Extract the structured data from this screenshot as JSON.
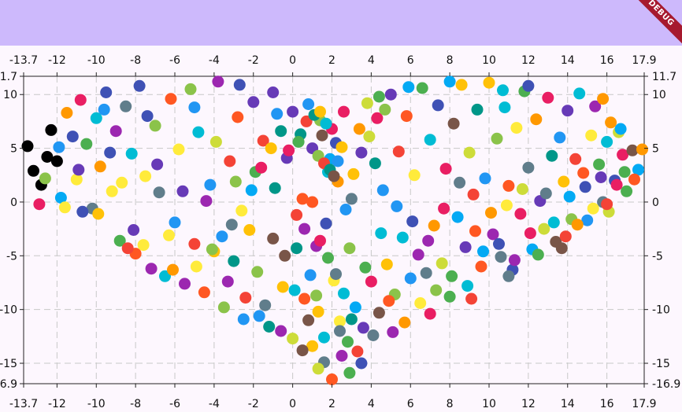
{
  "debug_banner": "DEBUG",
  "colors": {
    "appbar": "#cdb9fc",
    "background": "#fdf7fe",
    "grid": "#c8c8c8",
    "dot_palette": [
      "#f44336",
      "#e91e63",
      "#9c27b0",
      "#673ab7",
      "#3f51b5",
      "#2196f3",
      "#03a9f4",
      "#00bcd4",
      "#009688",
      "#4caf50",
      "#8bc34a",
      "#cddc39",
      "#ffeb3b",
      "#ffc107",
      "#ff9800",
      "#ff5722",
      "#795548",
      "#607d8b"
    ]
  },
  "chart_data": {
    "type": "scatter",
    "title": "",
    "xlabel": "",
    "ylabel": "",
    "xlim": [
      -13.7,
      17.9
    ],
    "ylim": [
      -16.9,
      11.7
    ],
    "x_ticks": [
      "-13.7",
      "-12",
      "-10",
      "-8",
      "-6",
      "-4",
      "-2",
      "0",
      "2",
      "4",
      "6",
      "8",
      "10",
      "12",
      "14",
      "16",
      "17.9"
    ],
    "y_ticks": [
      "11.7",
      "10",
      "5",
      "0",
      "-5",
      "-10",
      "-15",
      "-16.9"
    ],
    "grid": true,
    "legend": "none",
    "shape": "heart-shaped scatter of ~1000 multicolored points",
    "series": [
      {
        "points": [
          [
            -13.5,
            5.2
          ],
          [
            -13.2,
            2.9
          ],
          [
            -12.8,
            1.6
          ],
          [
            -12.5,
            4.2
          ],
          [
            -12.3,
            6.7
          ],
          [
            -12.0,
            3.8
          ],
          [
            -11.8,
            0.4
          ],
          [
            -11.5,
            8.3
          ],
          [
            -11.2,
            6.1
          ],
          [
            -11.0,
            2.1
          ],
          [
            -10.8,
            9.5
          ],
          [
            -10.5,
            5.4
          ],
          [
            -10.2,
            -0.6
          ],
          [
            -10.0,
            7.8
          ],
          [
            -9.8,
            3.3
          ],
          [
            -9.5,
            10.2
          ],
          [
            -9.2,
            1.0
          ],
          [
            -9.0,
            6.6
          ],
          [
            -8.8,
            -3.6
          ],
          [
            -8.5,
            8.9
          ],
          [
            -8.2,
            4.5
          ],
          [
            -8.0,
            -4.8
          ],
          [
            -7.8,
            10.8
          ],
          [
            -7.5,
            2.4
          ],
          [
            -7.2,
            -6.2
          ],
          [
            -7.0,
            7.1
          ],
          [
            -6.8,
            0.9
          ],
          [
            -6.5,
            -6.9
          ],
          [
            -6.2,
            9.6
          ],
          [
            -6.0,
            -1.9
          ],
          [
            -5.8,
            4.9
          ],
          [
            -5.5,
            -7.6
          ],
          [
            -5.2,
            10.5
          ],
          [
            -5.0,
            -3.9
          ],
          [
            -4.8,
            6.5
          ],
          [
            -4.5,
            -8.4
          ],
          [
            -4.2,
            1.6
          ],
          [
            -4.0,
            -4.6
          ],
          [
            -3.8,
            11.2
          ],
          [
            -3.5,
            -9.8
          ],
          [
            -3.2,
            3.8
          ],
          [
            -3.0,
            -5.5
          ],
          [
            -2.8,
            7.9
          ],
          [
            -2.5,
            -10.9
          ],
          [
            -2.2,
            -2.6
          ],
          [
            -2.0,
            9.3
          ],
          [
            -1.8,
            -6.5
          ],
          [
            -1.5,
            5.7
          ],
          [
            -1.2,
            -11.6
          ],
          [
            -1.0,
            -3.4
          ],
          [
            -0.8,
            8.2
          ],
          [
            -0.5,
            -7.9
          ],
          [
            -0.3,
            4.1
          ],
          [
            0.0,
            -12.7
          ],
          [
            0.2,
            -1.2
          ],
          [
            0.4,
            6.3
          ],
          [
            0.6,
            -9.0
          ],
          [
            0.8,
            9.1
          ],
          [
            1.0,
            -13.4
          ],
          [
            1.2,
            -4.1
          ],
          [
            1.4,
            7.6
          ],
          [
            1.6,
            -14.9
          ],
          [
            1.8,
            2.8
          ],
          [
            2.0,
            -16.5
          ],
          [
            2.2,
            5.5
          ],
          [
            2.4,
            -11.1
          ],
          [
            2.6,
            8.4
          ],
          [
            2.8,
            -13.0
          ],
          [
            3.0,
            0.3
          ],
          [
            3.2,
            -9.8
          ],
          [
            3.4,
            6.8
          ],
          [
            3.6,
            -11.7
          ],
          [
            3.8,
            9.2
          ],
          [
            4.0,
            -7.4
          ],
          [
            4.2,
            3.6
          ],
          [
            4.4,
            -10.3
          ],
          [
            4.6,
            1.1
          ],
          [
            4.8,
            -5.8
          ],
          [
            5.0,
            10.0
          ],
          [
            5.2,
            -8.6
          ],
          [
            5.4,
            4.7
          ],
          [
            5.6,
            -3.3
          ],
          [
            5.8,
            8.0
          ],
          [
            6.0,
            -7.1
          ],
          [
            6.2,
            2.5
          ],
          [
            6.4,
            -4.9
          ],
          [
            6.6,
            10.6
          ],
          [
            6.8,
            -6.6
          ],
          [
            7.0,
            5.8
          ],
          [
            7.2,
            -2.2
          ],
          [
            7.4,
            9.0
          ],
          [
            7.6,
            -5.7
          ],
          [
            7.8,
            3.1
          ],
          [
            8.0,
            -8.8
          ],
          [
            8.2,
            7.3
          ],
          [
            8.4,
            -1.4
          ],
          [
            8.6,
            10.9
          ],
          [
            8.8,
            -4.2
          ],
          [
            9.0,
            4.6
          ],
          [
            9.2,
            0.7
          ],
          [
            9.4,
            8.6
          ],
          [
            9.6,
            -6.0
          ],
          [
            9.8,
            2.2
          ],
          [
            10.0,
            11.1
          ],
          [
            10.2,
            -3.0
          ],
          [
            10.4,
            5.9
          ],
          [
            10.6,
            -5.1
          ],
          [
            10.8,
            8.8
          ],
          [
            11.0,
            1.5
          ],
          [
            11.2,
            -6.3
          ],
          [
            11.4,
            6.9
          ],
          [
            11.6,
            -1.1
          ],
          [
            11.8,
            10.3
          ],
          [
            12.0,
            3.2
          ],
          [
            12.2,
            -4.4
          ],
          [
            12.4,
            7.7
          ],
          [
            12.6,
            0.1
          ],
          [
            12.8,
            -2.5
          ],
          [
            13.0,
            9.7
          ],
          [
            13.2,
            4.3
          ],
          [
            13.4,
            -3.7
          ],
          [
            13.6,
            6.0
          ],
          [
            13.8,
            1.9
          ],
          [
            14.0,
            8.5
          ],
          [
            14.2,
            -1.6
          ],
          [
            14.4,
            4.0
          ],
          [
            14.6,
            10.1
          ],
          [
            14.8,
            2.7
          ],
          [
            15.0,
            -1.7
          ],
          [
            15.2,
            6.2
          ],
          [
            15.4,
            8.9
          ],
          [
            15.6,
            3.5
          ],
          [
            15.8,
            0.0
          ],
          [
            16.0,
            5.6
          ],
          [
            16.2,
            7.4
          ],
          [
            16.4,
            2.0
          ],
          [
            16.6,
            6.5
          ],
          [
            16.8,
            4.4
          ],
          [
            17.0,
            1.0
          ],
          [
            17.3,
            4.8
          ],
          [
            17.6,
            3.0
          ],
          [
            17.8,
            4.9
          ],
          [
            -12.9,
            -0.2
          ],
          [
            -11.6,
            -0.5
          ],
          [
            -10.9,
            3.0
          ],
          [
            -9.9,
            -1.1
          ],
          [
            -9.3,
            4.6
          ],
          [
            -8.7,
            1.8
          ],
          [
            -8.1,
            -2.6
          ],
          [
            -7.6,
            -4.0
          ],
          [
            -6.9,
            3.5
          ],
          [
            -6.3,
            -3.1
          ],
          [
            -5.6,
            1.0
          ],
          [
            -4.9,
            -6.0
          ],
          [
            -4.4,
            0.1
          ],
          [
            -3.9,
            5.6
          ],
          [
            -3.3,
            -7.4
          ],
          [
            -2.9,
            1.9
          ],
          [
            -2.4,
            -8.9
          ],
          [
            -1.9,
            2.8
          ],
          [
            -1.4,
            -9.6
          ],
          [
            -0.9,
            1.3
          ],
          [
            -0.4,
            -5.0
          ],
          [
            0.1,
            -8.2
          ],
          [
            0.5,
            0.3
          ],
          [
            0.9,
            -6.8
          ],
          [
            1.3,
            -10.2
          ],
          [
            1.7,
            -2.0
          ],
          [
            2.1,
            -7.3
          ],
          [
            2.5,
            -14.3
          ],
          [
            2.9,
            -4.3
          ],
          [
            3.3,
            -13.9
          ],
          [
            3.7,
            -6.1
          ],
          [
            4.1,
            -12.4
          ],
          [
            4.5,
            -2.9
          ],
          [
            4.9,
            -9.2
          ],
          [
            5.3,
            -0.4
          ],
          [
            5.7,
            -11.2
          ],
          [
            6.1,
            -1.8
          ],
          [
            6.5,
            -9.4
          ],
          [
            6.9,
            -3.6
          ],
          [
            7.3,
            -8.2
          ],
          [
            7.7,
            -0.6
          ],
          [
            8.1,
            -6.9
          ],
          [
            8.5,
            1.8
          ],
          [
            8.9,
            -7.8
          ],
          [
            9.3,
            -2.7
          ],
          [
            9.7,
            -4.6
          ],
          [
            10.1,
            -1.0
          ],
          [
            10.5,
            -3.9
          ],
          [
            10.9,
            -0.3
          ],
          [
            11.3,
            -5.4
          ],
          [
            11.7,
            1.2
          ],
          [
            12.1,
            -2.9
          ],
          [
            12.5,
            -4.9
          ],
          [
            12.9,
            0.8
          ],
          [
            13.3,
            -1.9
          ],
          [
            13.7,
            -4.3
          ],
          [
            14.1,
            0.5
          ],
          [
            14.5,
            -2.1
          ],
          [
            14.9,
            1.4
          ],
          [
            15.3,
            -0.6
          ],
          [
            15.7,
            2.3
          ],
          [
            16.1,
            -0.9
          ],
          [
            16.5,
            1.6
          ],
          [
            16.9,
            2.8
          ],
          [
            -0.2,
            4.8
          ],
          [
            0.3,
            5.6
          ],
          [
            0.7,
            7.5
          ],
          [
            1.1,
            8.1
          ],
          [
            1.5,
            6.2
          ],
          [
            1.9,
            4.0
          ],
          [
            2.3,
            1.9
          ],
          [
            2.7,
            -0.7
          ],
          [
            3.1,
            2.6
          ],
          [
            3.5,
            4.6
          ],
          [
            3.9,
            6.1
          ],
          [
            4.3,
            7.8
          ],
          [
            4.7,
            8.6
          ],
          [
            0.0,
            8.4
          ],
          [
            -0.6,
            6.6
          ],
          [
            -1.1,
            5.0
          ],
          [
            -1.6,
            3.2
          ],
          [
            -2.1,
            1.1
          ],
          [
            -2.6,
            -0.8
          ],
          [
            -3.1,
            -2.1
          ],
          [
            -3.6,
            -3.2
          ],
          [
            -4.1,
            -4.4
          ],
          [
            1.0,
            0.0
          ],
          [
            0.6,
            -2.5
          ],
          [
            0.2,
            -4.3
          ],
          [
            1.4,
            -3.6
          ],
          [
            1.8,
            -5.2
          ],
          [
            2.2,
            -6.7
          ],
          [
            2.6,
            -8.5
          ],
          [
            1.2,
            -8.7
          ],
          [
            0.8,
            -11.0
          ],
          [
            1.6,
            -12.6
          ],
          [
            2.4,
            -12.0
          ],
          [
            3.0,
            -10.9
          ],
          [
            -1.0,
            10.2
          ],
          [
            -2.7,
            10.9
          ],
          [
            -5.0,
            8.8
          ],
          [
            -7.4,
            8.0
          ],
          [
            -9.6,
            8.6
          ],
          [
            -11.9,
            5.1
          ],
          [
            -12.6,
            2.2
          ],
          [
            -10.7,
            -0.9
          ],
          [
            -8.4,
            -4.3
          ],
          [
            -6.1,
            -6.3
          ],
          [
            12.0,
            10.8
          ],
          [
            10.7,
            10.4
          ],
          [
            8.0,
            11.2
          ],
          [
            5.9,
            10.7
          ],
          [
            4.4,
            9.8
          ],
          [
            15.8,
            9.6
          ],
          [
            16.7,
            6.8
          ],
          [
            17.4,
            2.1
          ],
          [
            16.0,
            -0.2
          ],
          [
            13.9,
            -3.2
          ],
          [
            11.0,
            -6.9
          ],
          [
            9.1,
            -9.0
          ],
          [
            7.0,
            -10.4
          ],
          [
            5.1,
            -12.1
          ],
          [
            3.5,
            -15.0
          ],
          [
            2.9,
            -15.9
          ],
          [
            1.3,
            -15.5
          ],
          [
            0.5,
            -13.8
          ],
          [
            -0.6,
            -12.0
          ],
          [
            -1.7,
            -10.6
          ],
          [
            1.0,
            5.0
          ],
          [
            1.3,
            4.3
          ],
          [
            1.6,
            3.6
          ],
          [
            1.9,
            3.0
          ],
          [
            2.1,
            2.4
          ],
          [
            2.3,
            3.8
          ],
          [
            2.5,
            5.1
          ],
          [
            2.0,
            6.8
          ],
          [
            1.7,
            7.3
          ],
          [
            1.4,
            8.4
          ]
        ]
      }
    ]
  }
}
